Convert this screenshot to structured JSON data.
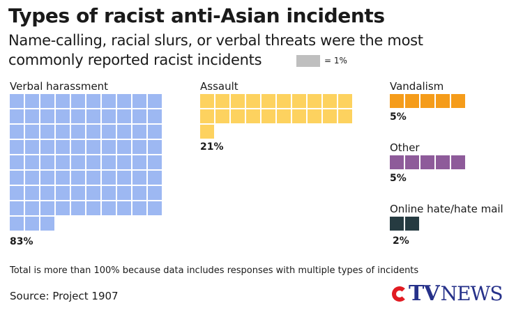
{
  "header": {
    "title": "Types of racist anti-Asian incidents",
    "subtitle": "Name-calling, racial slurs, or verbal threats were the most commonly reported racist incidents"
  },
  "legend": {
    "label": "= 1%",
    "swatch_color": "#bfbfbf"
  },
  "chart_data": {
    "type": "waffle",
    "unit": "1%",
    "categories": [
      "Verbal harassment",
      "Assault",
      "Vandalism",
      "Other",
      "Online hate/hate mail"
    ],
    "values": [
      83,
      21,
      5,
      5,
      2
    ],
    "value_labels": [
      "83%",
      "21%",
      "5%",
      "5%",
      "2%"
    ],
    "colors": [
      "#9db8f2",
      "#fdd25f",
      "#f59c1a",
      "#8e5b9a",
      "#263b41"
    ],
    "legend_position": "top-right"
  },
  "footnote": "Total is more than 100% because data includes responses with multiple types of incidents",
  "source": "Source: Project 1907",
  "logo": {
    "letters": "TV",
    "word": "NEWS"
  }
}
